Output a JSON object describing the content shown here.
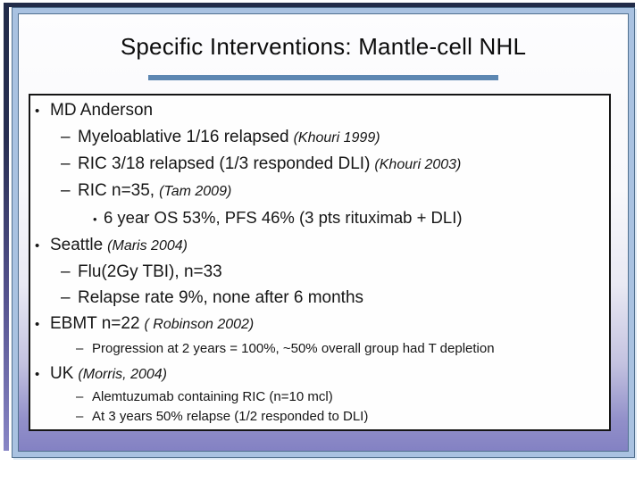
{
  "slide": {
    "title": "Specific Interventions: Mantle-cell NHL",
    "bullets": [
      {
        "level": 1,
        "marker": "•",
        "text": "MD Anderson",
        "cite": "",
        "size": "normal"
      },
      {
        "level": 2,
        "marker": "–",
        "text": "Myeloablative 1/16 relapsed",
        "cite": "(Khouri 1999)",
        "size": "normal"
      },
      {
        "level": 2,
        "marker": "–",
        "text": "RIC 3/18 relapsed (1/3 responded DLI)",
        "cite": "(Khouri 2003)",
        "size": "normal"
      },
      {
        "level": 2,
        "marker": "–",
        "text": "RIC n=35,",
        "cite": "(Tam 2009)",
        "size": "normal"
      },
      {
        "level": 3,
        "marker": "•",
        "text": "6 year OS 53%, PFS 46% (3 pts rituximab + DLI)",
        "cite": "",
        "size": "normal"
      },
      {
        "level": 1,
        "marker": "•",
        "text": "Seattle",
        "cite": "(Maris 2004)",
        "size": "normal"
      },
      {
        "level": 2,
        "marker": "–",
        "text": "Flu(2Gy TBI), n=33",
        "cite": "",
        "size": "normal"
      },
      {
        "level": 2,
        "marker": "–",
        "text": "Relapse rate 9%, none after 6 months",
        "cite": "",
        "size": "normal"
      },
      {
        "level": 1,
        "marker": "•",
        "text": "EBMT n=22",
        "cite": "( Robinson 2002)",
        "size": "normal"
      },
      {
        "level": 2,
        "marker": "–",
        "text": "Progression at 2 years = 100%, ~50% overall group had T depletion",
        "cite": "",
        "size": "sm"
      },
      {
        "level": 1,
        "marker": "•",
        "text": "UK",
        "cite": "(Morris, 2004)",
        "size": "normal"
      },
      {
        "level": 2,
        "marker": "–",
        "text": "Alemtuzumab containing RIC (n=10 mcl)",
        "cite": "",
        "size": "xs"
      },
      {
        "level": 2,
        "marker": "–",
        "text": "At 3 years 50% relapse (1/2 responded to DLI)",
        "cite": "",
        "size": "xs"
      }
    ]
  },
  "colors": {
    "divider_bar": "#5d87b2",
    "frame_fill": "#a9c2e1",
    "frame_line": "#51708f",
    "accent_navy": "#222c49",
    "accent_purple": "#8886c6",
    "background_bottom": "#8381c3",
    "content_box_border": "#151515",
    "text": "#161616"
  }
}
